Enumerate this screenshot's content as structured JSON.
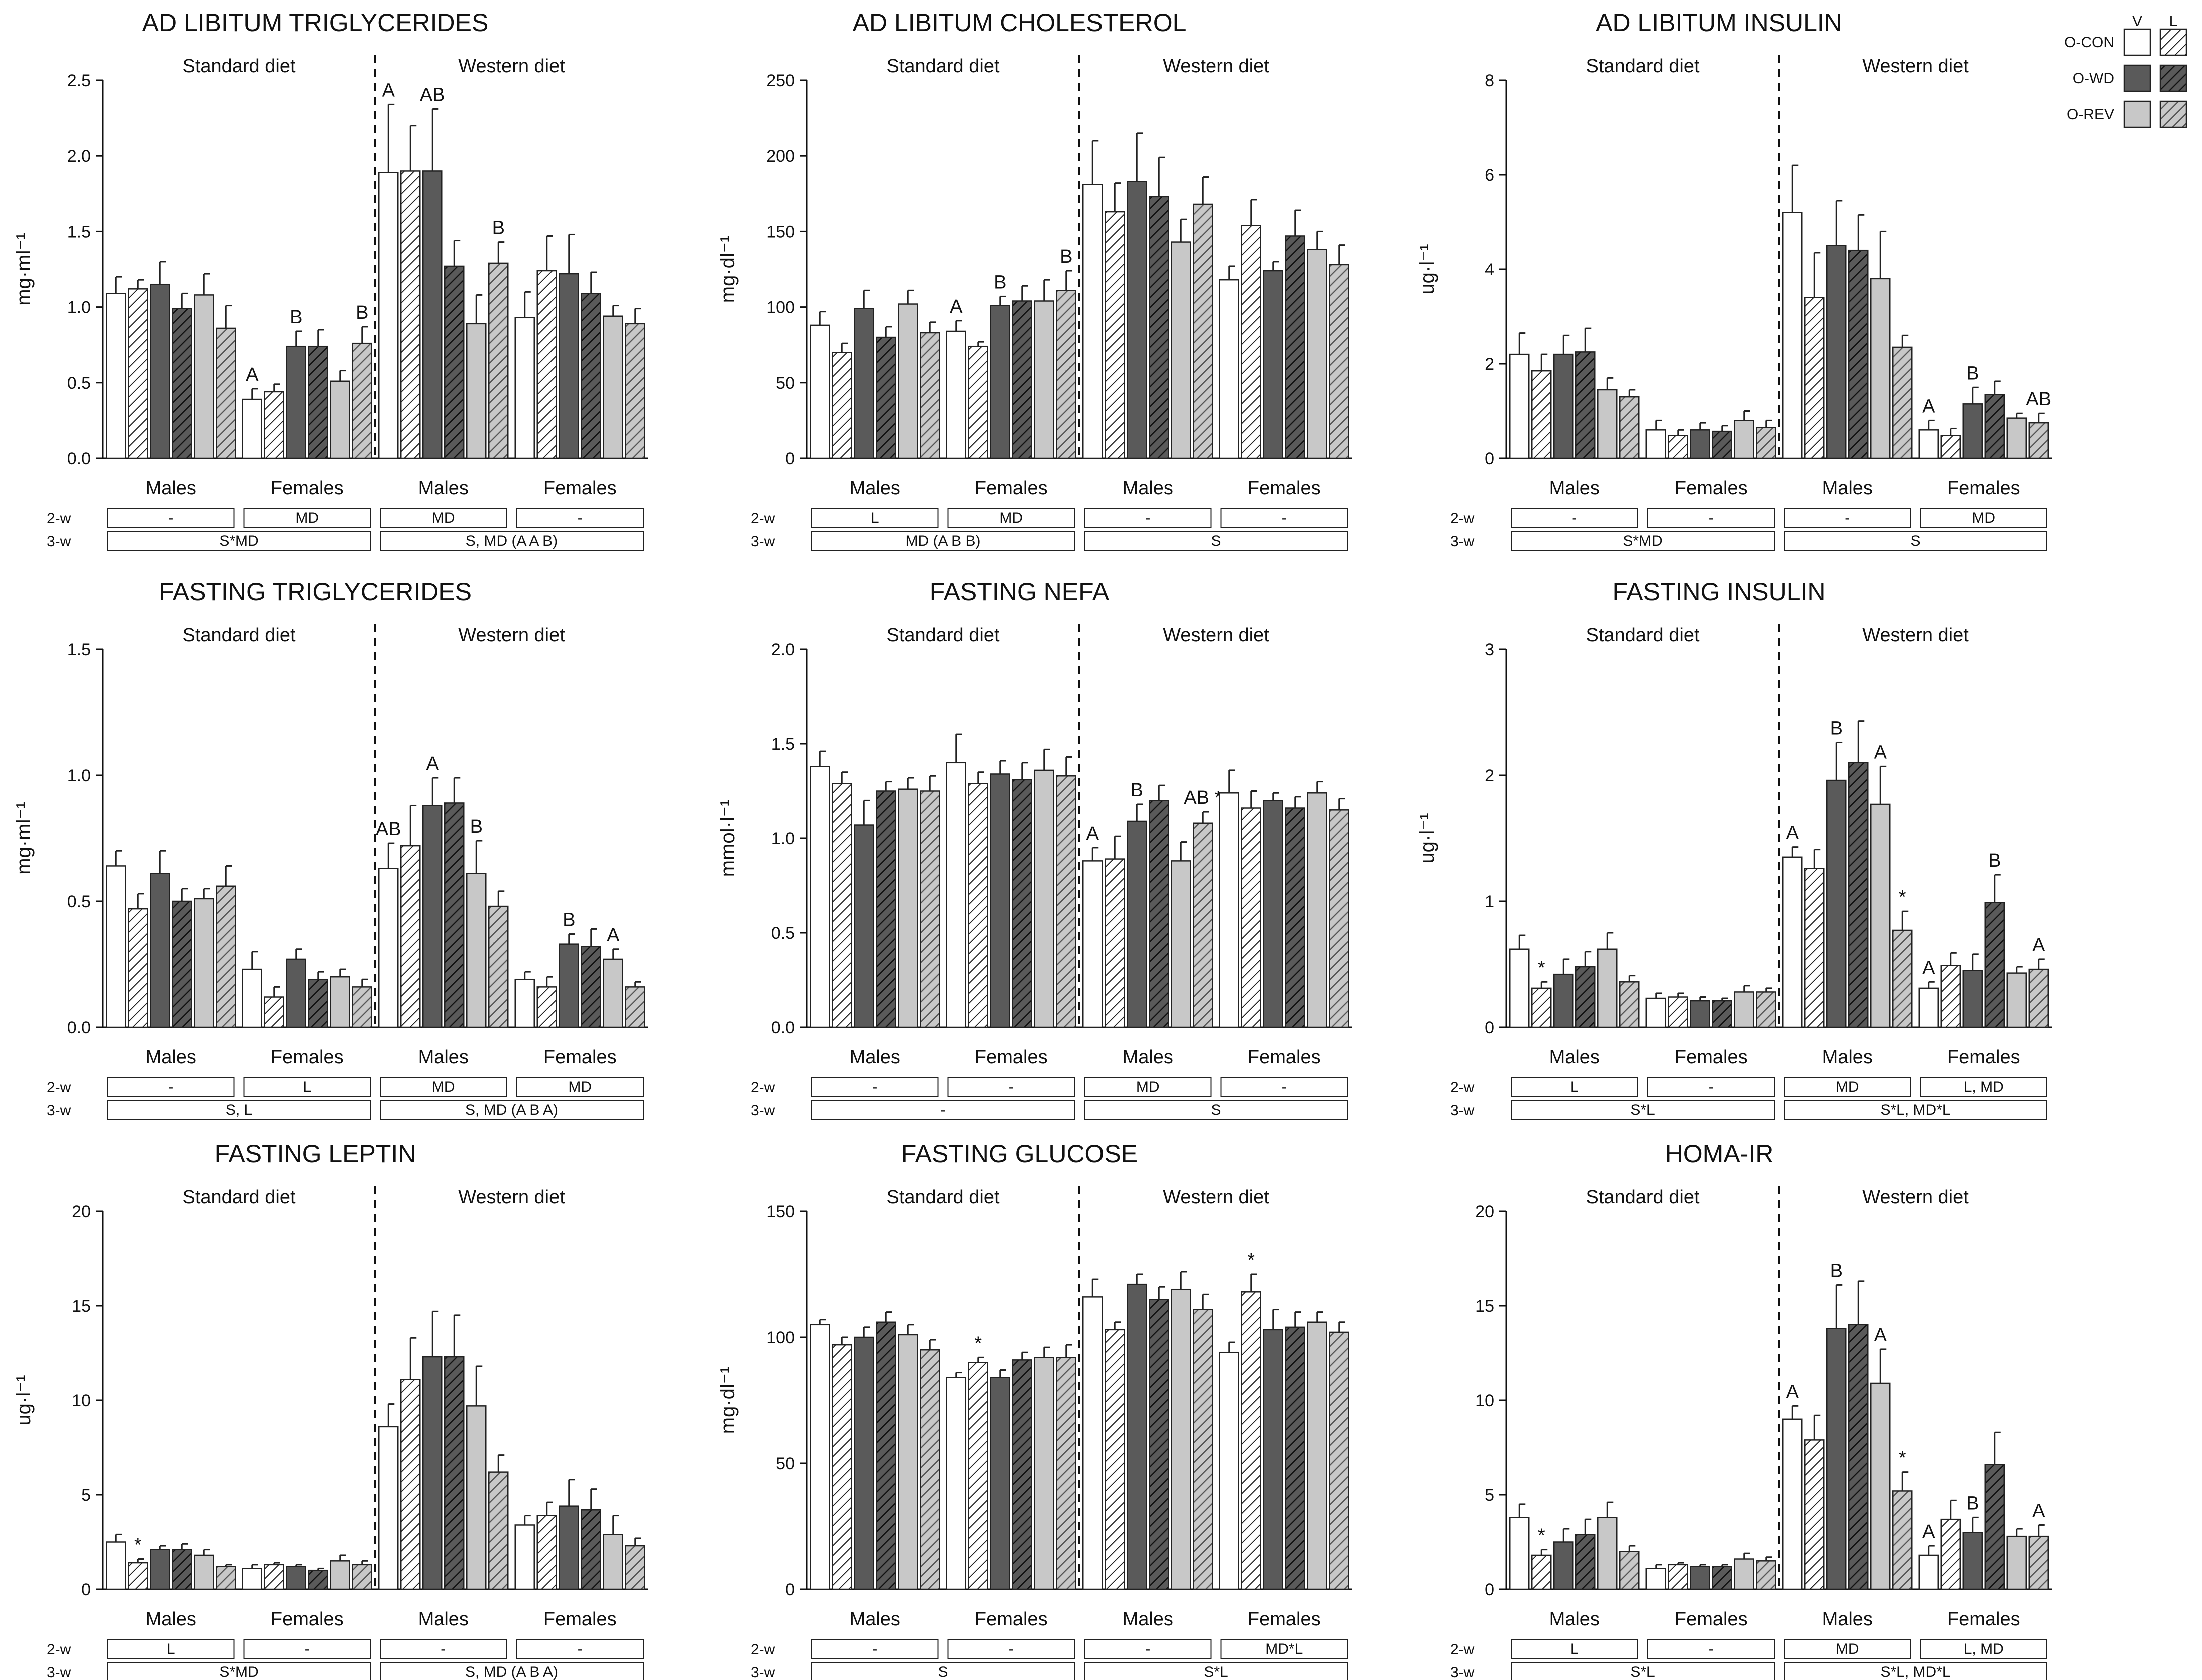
{
  "legend": {
    "col_headers": [
      "V",
      "L"
    ],
    "groups": [
      "O-CON",
      "O-WD",
      "O-REV"
    ],
    "colors": {
      "O-CON": "#ffffff",
      "O-WD": "#5a5a5a",
      "O-REV": "#c8c8c8"
    }
  },
  "chart_data": [
    {
      "id": "ad-tg",
      "type": "bar",
      "title": "AD LIBITUM TRIGLYCERIDES",
      "ylabel": "mg·ml⁻¹",
      "ylim": [
        0,
        2.5
      ],
      "yticks": [
        0.0,
        0.5,
        1.0,
        1.5,
        2.0,
        2.5
      ],
      "ytick_labels": [
        "0.0",
        "0.5",
        "1.0",
        "1.5",
        "2.0",
        "2.5"
      ],
      "diet_labels": [
        "Standard diet",
        "Western diet"
      ],
      "sex_labels": [
        "Males",
        "Females",
        "Males",
        "Females"
      ],
      "values": [
        [
          1.09,
          1.12,
          1.15,
          0.99,
          1.08,
          0.86
        ],
        [
          0.39,
          0.44,
          0.74,
          0.74,
          0.51,
          0.76
        ],
        [
          1.89,
          1.9,
          1.9,
          1.27,
          0.89,
          1.29
        ],
        [
          0.93,
          1.24,
          1.22,
          1.09,
          0.94,
          0.89
        ]
      ],
      "errors": [
        [
          0.11,
          0.06,
          0.15,
          0.1,
          0.14,
          0.15
        ],
        [
          0.07,
          0.05,
          0.1,
          0.11,
          0.07,
          0.11
        ],
        [
          0.45,
          0.3,
          0.41,
          0.17,
          0.19,
          0.14
        ],
        [
          0.17,
          0.23,
          0.26,
          0.14,
          0.07,
          0.1
        ]
      ],
      "annotations": [
        [],
        [
          "A",
          "",
          "B",
          "",
          "",
          "B"
        ],
        [
          "A",
          "",
          "AB",
          "",
          "",
          "B"
        ],
        []
      ],
      "two_w": [
        "-",
        "MD",
        "MD",
        "-"
      ],
      "three_w": [
        "S*MD",
        "S, MD (A A B)"
      ]
    },
    {
      "id": "ad-chol",
      "type": "bar",
      "title": "AD LIBITUM CHOLESTEROL",
      "ylabel": "mg·dl⁻¹",
      "ylim": [
        0,
        250
      ],
      "yticks": [
        0,
        50,
        100,
        150,
        200,
        250
      ],
      "ytick_labels": [
        "0",
        "50",
        "100",
        "150",
        "200",
        "250"
      ],
      "diet_labels": [
        "Standard diet",
        "Western diet"
      ],
      "sex_labels": [
        "Males",
        "Females",
        "Males",
        "Females"
      ],
      "values": [
        [
          88,
          70,
          99,
          80,
          102,
          83
        ],
        [
          84,
          74,
          101,
          104,
          104,
          111
        ],
        [
          181,
          163,
          183,
          173,
          143,
          168
        ],
        [
          118,
          154,
          124,
          147,
          138,
          128
        ]
      ],
      "errors": [
        [
          9,
          6,
          12,
          7,
          9,
          7
        ],
        [
          7,
          3,
          6,
          10,
          14,
          13
        ],
        [
          29,
          19,
          32,
          26,
          15,
          18
        ],
        [
          9,
          17,
          6,
          17,
          12,
          13
        ]
      ],
      "annotations": [
        [],
        [
          "A",
          "",
          "B",
          "",
          "",
          "B"
        ],
        [],
        []
      ],
      "two_w": [
        "L",
        "MD",
        "-",
        "-"
      ],
      "three_w": [
        "MD (A B B)",
        "S"
      ]
    },
    {
      "id": "ad-ins",
      "type": "bar",
      "title": "AD LIBITUM INSULIN",
      "ylabel": "ug·l⁻¹",
      "ylim": [
        0,
        8
      ],
      "yticks": [
        0,
        2,
        4,
        6,
        8
      ],
      "ytick_labels": [
        "0",
        "2",
        "4",
        "6",
        "8"
      ],
      "diet_labels": [
        "Standard diet",
        "Western diet"
      ],
      "sex_labels": [
        "Males",
        "Females",
        "Males",
        "Females"
      ],
      "values": [
        [
          2.2,
          1.85,
          2.2,
          2.25,
          1.45,
          1.3
        ],
        [
          0.6,
          0.48,
          0.6,
          0.57,
          0.8,
          0.65
        ],
        [
          5.2,
          3.4,
          4.5,
          4.4,
          3.8,
          2.35
        ],
        [
          0.6,
          0.48,
          1.15,
          1.35,
          0.85,
          0.75
        ]
      ],
      "errors": [
        [
          0.45,
          0.35,
          0.4,
          0.5,
          0.25,
          0.15
        ],
        [
          0.2,
          0.12,
          0.15,
          0.12,
          0.2,
          0.15
        ],
        [
          1.0,
          0.95,
          0.95,
          0.75,
          1.0,
          0.25
        ],
        [
          0.2,
          0.15,
          0.35,
          0.28,
          0.1,
          0.2
        ]
      ],
      "annotations": [
        [],
        [],
        [],
        [
          "A",
          "",
          "B",
          "",
          "",
          "AB"
        ]
      ],
      "two_w": [
        "-",
        "-",
        "-",
        "MD"
      ],
      "three_w": [
        "S*MD",
        "S"
      ]
    },
    {
      "id": "fast-tg",
      "type": "bar",
      "title": "FASTING TRIGLYCERIDES",
      "ylabel": "mg·ml⁻¹",
      "ylim": [
        0,
        1.5
      ],
      "yticks": [
        0.0,
        0.5,
        1.0,
        1.5
      ],
      "ytick_labels": [
        "0.0",
        "0.5",
        "1.0",
        "1.5"
      ],
      "diet_labels": [
        "Standard diet",
        "Western diet"
      ],
      "sex_labels": [
        "Males",
        "Females",
        "Males",
        "Females"
      ],
      "values": [
        [
          0.64,
          0.47,
          0.61,
          0.5,
          0.51,
          0.56
        ],
        [
          0.23,
          0.12,
          0.27,
          0.19,
          0.2,
          0.16
        ],
        [
          0.63,
          0.72,
          0.88,
          0.89,
          0.61,
          0.48
        ],
        [
          0.19,
          0.16,
          0.33,
          0.32,
          0.27,
          0.16
        ]
      ],
      "errors": [
        [
          0.06,
          0.06,
          0.09,
          0.05,
          0.04,
          0.08
        ],
        [
          0.07,
          0.04,
          0.04,
          0.03,
          0.03,
          0.03
        ],
        [
          0.1,
          0.16,
          0.11,
          0.1,
          0.13,
          0.06
        ],
        [
          0.03,
          0.04,
          0.04,
          0.07,
          0.04,
          0.02
        ]
      ],
      "annotations": [
        [],
        [],
        [
          "AB",
          "",
          "A",
          "",
          "B",
          ""
        ],
        [
          "",
          "",
          "B",
          "",
          "A",
          ""
        ]
      ],
      "two_w": [
        "-",
        "L",
        "MD",
        "MD"
      ],
      "three_w": [
        "S, L",
        "S, MD (A B A)"
      ]
    },
    {
      "id": "fast-nefa",
      "type": "bar",
      "title": "FASTING NEFA",
      "ylabel": "mmol·l⁻¹",
      "ylim": [
        0,
        2.0
      ],
      "yticks": [
        0.0,
        0.5,
        1.0,
        1.5,
        2.0
      ],
      "ytick_labels": [
        "0.0",
        "0.5",
        "1.0",
        "1.5",
        "2.0"
      ],
      "diet_labels": [
        "Standard diet",
        "Western diet"
      ],
      "sex_labels": [
        "Males",
        "Females",
        "Males",
        "Females"
      ],
      "values": [
        [
          1.38,
          1.29,
          1.07,
          1.25,
          1.26,
          1.25
        ],
        [
          1.4,
          1.29,
          1.34,
          1.31,
          1.36,
          1.33
        ],
        [
          0.88,
          0.89,
          1.09,
          1.2,
          0.88,
          1.08
        ],
        [
          1.24,
          1.16,
          1.2,
          1.16,
          1.24,
          1.15
        ]
      ],
      "errors": [
        [
          0.08,
          0.06,
          0.13,
          0.05,
          0.06,
          0.08
        ],
        [
          0.15,
          0.06,
          0.07,
          0.09,
          0.11,
          0.1
        ],
        [
          0.07,
          0.12,
          0.09,
          0.08,
          0.1,
          0.06
        ],
        [
          0.12,
          0.09,
          0.04,
          0.06,
          0.06,
          0.06
        ]
      ],
      "annotations": [
        [],
        [],
        [
          "A",
          "",
          "B",
          "",
          "",
          "AB *"
        ],
        []
      ],
      "two_w": [
        "-",
        "-",
        "MD",
        "-"
      ],
      "three_w": [
        "-",
        "S"
      ]
    },
    {
      "id": "fast-ins",
      "type": "bar",
      "title": "FASTING INSULIN",
      "ylabel": "ug·l⁻¹",
      "ylim": [
        0,
        3
      ],
      "yticks": [
        0,
        1,
        2,
        3
      ],
      "ytick_labels": [
        "0",
        "1",
        "2",
        "3"
      ],
      "diet_labels": [
        "Standard diet",
        "Western diet"
      ],
      "sex_labels": [
        "Males",
        "Females",
        "Males",
        "Females"
      ],
      "values": [
        [
          0.62,
          0.31,
          0.42,
          0.48,
          0.62,
          0.36
        ],
        [
          0.23,
          0.24,
          0.21,
          0.21,
          0.28,
          0.28
        ],
        [
          1.35,
          1.26,
          1.96,
          2.1,
          1.77,
          0.77
        ],
        [
          0.31,
          0.49,
          0.45,
          0.99,
          0.43,
          0.46
        ]
      ],
      "errors": [
        [
          0.11,
          0.05,
          0.12,
          0.12,
          0.13,
          0.05
        ],
        [
          0.04,
          0.03,
          0.03,
          0.02,
          0.05,
          0.03
        ],
        [
          0.08,
          0.15,
          0.3,
          0.33,
          0.3,
          0.15
        ],
        [
          0.05,
          0.1,
          0.13,
          0.22,
          0.05,
          0.08
        ]
      ],
      "annotations": [
        [
          "",
          "*",
          "",
          "",
          "",
          ""
        ],
        [],
        [
          "A",
          "",
          "B",
          "",
          "A",
          "*"
        ],
        [
          "A",
          "",
          "",
          "B",
          "",
          "A"
        ]
      ],
      "two_w": [
        "L",
        "-",
        "MD",
        "L, MD"
      ],
      "three_w": [
        "S*L",
        "S*L, MD*L"
      ]
    },
    {
      "id": "fast-lep",
      "type": "bar",
      "title": "FASTING LEPTIN",
      "ylabel": "ug·l⁻¹",
      "ylim": [
        0,
        20
      ],
      "yticks": [
        0,
        5,
        10,
        15,
        20
      ],
      "ytick_labels": [
        "0",
        "5",
        "10",
        "15",
        "20"
      ],
      "diet_labels": [
        "Standard diet",
        "Western diet"
      ],
      "sex_labels": [
        "Males",
        "Females",
        "Males",
        "Females"
      ],
      "values": [
        [
          2.5,
          1.4,
          2.1,
          2.1,
          1.8,
          1.2
        ],
        [
          1.1,
          1.3,
          1.2,
          1.0,
          1.5,
          1.3
        ],
        [
          8.6,
          11.1,
          12.3,
          12.3,
          9.7,
          6.2
        ],
        [
          3.4,
          3.9,
          4.4,
          4.2,
          2.9,
          2.3
        ]
      ],
      "errors": [
        [
          0.4,
          0.2,
          0.2,
          0.3,
          0.3,
          0.1
        ],
        [
          0.2,
          0.1,
          0.1,
          0.1,
          0.3,
          0.2
        ],
        [
          1.2,
          2.2,
          2.4,
          2.2,
          2.1,
          0.9
        ],
        [
          0.5,
          0.7,
          1.4,
          1.1,
          1.0,
          0.4
        ]
      ],
      "annotations": [
        [
          "",
          "*",
          "",
          "",
          "",
          ""
        ],
        [],
        [],
        []
      ],
      "two_w": [
        "L",
        "-",
        "-",
        "-"
      ],
      "three_w": [
        "S*MD",
        "S, MD (A B A)"
      ]
    },
    {
      "id": "fast-glu",
      "type": "bar",
      "title": "FASTING GLUCOSE",
      "ylabel": "mg·dl⁻¹",
      "ylim": [
        0,
        150
      ],
      "yticks": [
        0,
        50,
        100,
        150
      ],
      "ytick_labels": [
        "0",
        "50",
        "100",
        "150"
      ],
      "diet_labels": [
        "Standard diet",
        "Western diet"
      ],
      "sex_labels": [
        "Males",
        "Females",
        "Males",
        "Females"
      ],
      "values": [
        [
          105,
          97,
          100,
          106,
          101,
          95
        ],
        [
          84,
          90,
          84,
          91,
          92,
          92
        ],
        [
          116,
          103,
          121,
          115,
          119,
          111
        ],
        [
          94,
          118,
          103,
          104,
          106,
          102
        ]
      ],
      "errors": [
        [
          2,
          3,
          4,
          4,
          4,
          4
        ],
        [
          2,
          2,
          3,
          3,
          4,
          5
        ],
        [
          7,
          3,
          4,
          5,
          7,
          6
        ],
        [
          4,
          7,
          8,
          6,
          4,
          4
        ]
      ],
      "annotations": [
        [],
        [
          "",
          "*",
          "",
          "",
          "",
          ""
        ],
        [],
        [
          "",
          "*",
          "",
          "",
          "",
          ""
        ]
      ],
      "two_w": [
        "-",
        "-",
        "-",
        "MD*L"
      ],
      "three_w": [
        "S",
        "S*L"
      ]
    },
    {
      "id": "homa",
      "type": "bar",
      "title": "HOMA-IR",
      "ylabel": "",
      "ylim": [
        0,
        20
      ],
      "yticks": [
        0,
        5,
        10,
        15,
        20
      ],
      "ytick_labels": [
        "0",
        "5",
        "10",
        "15",
        "20"
      ],
      "diet_labels": [
        "Standard diet",
        "Western diet"
      ],
      "sex_labels": [
        "Males",
        "Females",
        "Males",
        "Females"
      ],
      "values": [
        [
          3.8,
          1.8,
          2.5,
          2.9,
          3.8,
          2.0
        ],
        [
          1.1,
          1.3,
          1.2,
          1.2,
          1.6,
          1.5
        ],
        [
          9.0,
          7.9,
          13.8,
          14.0,
          10.9,
          5.2
        ],
        [
          1.8,
          3.7,
          3.0,
          6.6,
          2.8,
          2.8
        ]
      ],
      "errors": [
        [
          0.7,
          0.3,
          0.7,
          0.8,
          0.8,
          0.3
        ],
        [
          0.2,
          0.1,
          0.1,
          0.1,
          0.3,
          0.2
        ],
        [
          0.7,
          1.3,
          2.3,
          2.3,
          1.8,
          1.0
        ],
        [
          0.5,
          1.0,
          0.8,
          1.7,
          0.4,
          0.6
        ]
      ],
      "annotations": [
        [
          "",
          "*",
          "",
          "",
          "",
          ""
        ],
        [],
        [
          "A",
          "",
          "B",
          "",
          "A",
          "*"
        ],
        [
          "A",
          "",
          "B",
          "",
          "",
          "A"
        ]
      ],
      "two_w": [
        "L",
        "-",
        "MD",
        "L, MD"
      ],
      "three_w": [
        "S*L",
        "S*L, MD*L"
      ]
    }
  ]
}
